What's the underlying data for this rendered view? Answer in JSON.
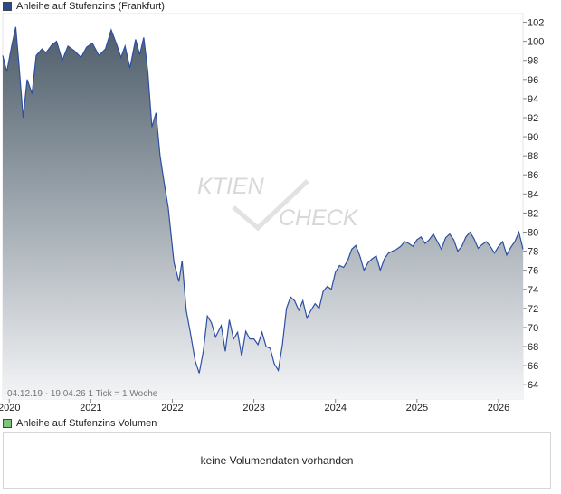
{
  "price_legend": {
    "label": "Anleihe auf Stufenzins (Frankfurt)",
    "color": "#2b4a8e"
  },
  "volume_legend": {
    "label": "Anleihe auf Stufenzins Volumen",
    "color": "#7fc47a"
  },
  "range_note": "04.12.19 - 19.04.26   1 Tick = 1 Woche",
  "watermark": {
    "left": "KTIEN",
    "right": "CHECK"
  },
  "volume_message": "keine Volumendaten vorhanden",
  "colors": {
    "line": "#2d4fa3",
    "fill_top": "#4d5d6a",
    "fill_bottom": "#f4f5f7"
  },
  "chart_data": {
    "type": "area",
    "title": "Anleihe auf Stufenzins (Frankfurt)",
    "x_tick_labels": [
      "2020",
      "2021",
      "2022",
      "2023",
      "2024",
      "2025",
      "2026"
    ],
    "y_ticks": [
      64,
      66,
      68,
      70,
      72,
      74,
      76,
      78,
      80,
      82,
      84,
      86,
      88,
      90,
      92,
      94,
      96,
      98,
      100,
      102
    ],
    "ylim": [
      62.5,
      103
    ],
    "xlim": [
      2019.92,
      2026.3
    ],
    "grid": false,
    "x": [
      2019.92,
      2019.97,
      2020.03,
      2020.08,
      2020.12,
      2020.17,
      2020.22,
      2020.28,
      2020.33,
      2020.4,
      2020.45,
      2020.52,
      2020.58,
      2020.65,
      2020.72,
      2020.8,
      2020.88,
      2020.95,
      2021.02,
      2021.1,
      2021.18,
      2021.25,
      2021.32,
      2021.37,
      2021.42,
      2021.48,
      2021.55,
      2021.6,
      2021.65,
      2021.7,
      2021.75,
      2021.8,
      2021.85,
      2021.9,
      2021.95,
      2022.02,
      2022.08,
      2022.12,
      2022.17,
      2022.22,
      2022.28,
      2022.33,
      2022.38,
      2022.43,
      2022.48,
      2022.53,
      2022.6,
      2022.65,
      2022.7,
      2022.75,
      2022.8,
      2022.85,
      2022.9,
      2022.95,
      2023.0,
      2023.05,
      2023.1,
      2023.15,
      2023.2,
      2023.25,
      2023.3,
      2023.35,
      2023.4,
      2023.45,
      2023.5,
      2023.55,
      2023.6,
      2023.65,
      2023.7,
      2023.75,
      2023.8,
      2023.85,
      2023.9,
      2023.95,
      2024.0,
      2024.05,
      2024.1,
      2024.15,
      2024.2,
      2024.25,
      2024.3,
      2024.35,
      2024.4,
      2024.45,
      2024.5,
      2024.55,
      2024.6,
      2024.65,
      2024.7,
      2024.75,
      2024.8,
      2024.85,
      2024.9,
      2024.95,
      2025.0,
      2025.05,
      2025.1,
      2025.15,
      2025.2,
      2025.25,
      2025.3,
      2025.35,
      2025.4,
      2025.45,
      2025.5,
      2025.55,
      2025.6,
      2025.65,
      2025.7,
      2025.75,
      2025.8,
      2025.85,
      2025.9,
      2025.95,
      2026.0,
      2026.05,
      2026.1,
      2026.15,
      2026.2,
      2026.25,
      2026.3
    ],
    "series": [
      {
        "values": [
          98.5,
          96.8,
          99.5,
          101.5,
          97.5,
          92.0,
          96.0,
          94.5,
          98.5,
          99.2,
          98.8,
          99.6,
          100.0,
          98.0,
          99.5,
          99.0,
          98.3,
          99.4,
          99.8,
          98.5,
          99.2,
          101.2,
          99.6,
          98.3,
          99.5,
          97.2,
          100.2,
          98.6,
          100.4,
          96.8,
          91.0,
          92.5,
          88.0,
          85.2,
          82.5,
          76.8,
          74.8,
          77.0,
          71.8,
          69.5,
          66.5,
          65.2,
          67.5,
          71.2,
          70.5,
          69.0,
          70.2,
          67.5,
          70.8,
          68.8,
          69.5,
          67.0,
          69.6,
          68.8,
          68.8,
          68.2,
          69.5,
          68.0,
          67.8,
          66.2,
          65.5,
          68.2,
          72.0,
          73.2,
          72.8,
          71.8,
          72.8,
          71.0,
          71.8,
          72.5,
          72.0,
          73.8,
          74.3,
          74.0,
          75.8,
          76.5,
          76.3,
          77.0,
          78.2,
          78.6,
          77.5,
          76.0,
          76.8,
          77.2,
          77.5,
          76.0,
          77.2,
          77.8,
          78.0,
          78.2,
          78.5,
          79.0,
          78.8,
          78.5,
          79.2,
          79.5,
          78.8,
          79.2,
          79.8,
          79.0,
          78.2,
          79.4,
          79.8,
          79.2,
          78.0,
          78.5,
          79.5,
          80.0,
          79.3,
          78.3,
          78.7,
          79.0,
          78.5,
          77.8,
          78.5,
          79.0,
          77.6,
          78.4,
          79.0,
          80.0,
          78.2
        ]
      }
    ]
  }
}
